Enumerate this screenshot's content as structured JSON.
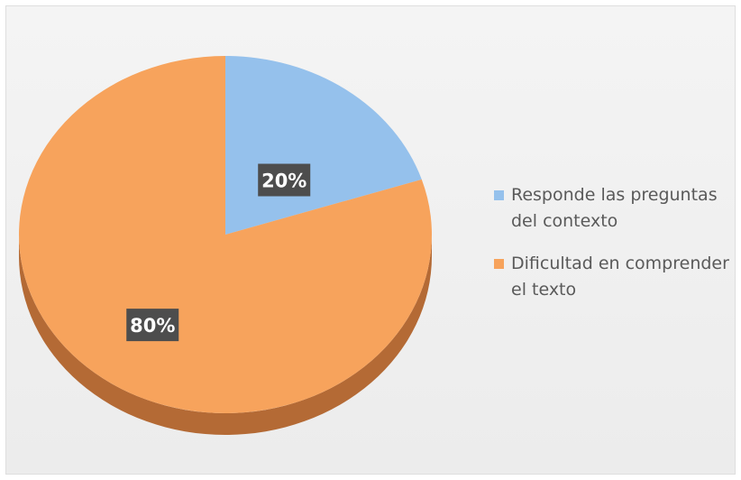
{
  "chart_data": {
    "type": "pie",
    "style": "3d",
    "categories": [
      "Responde las preguntas del contexto",
      "Dificultad en comprender el texto"
    ],
    "values": [
      20,
      80
    ],
    "data_labels": [
      "20%",
      "80%"
    ],
    "legend_position": "right",
    "colors": [
      "#95c1ec",
      "#f7a35c"
    ],
    "side_colors": [
      "#5f87ad",
      "#b46a35"
    ],
    "label_box_color": "#4d4d4d",
    "label_text_color": "#ffffff"
  },
  "legend": {
    "items": [
      {
        "label": "Responde las preguntas del contexto",
        "color": "#95c1ec"
      },
      {
        "label": "Dificultad en comprender el texto",
        "color": "#f7a35c"
      }
    ]
  }
}
